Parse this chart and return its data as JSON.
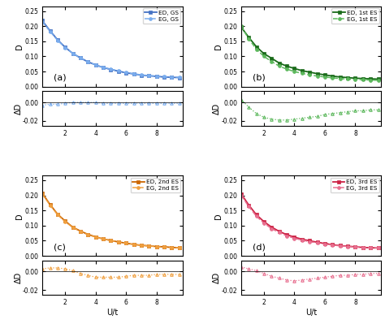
{
  "U_values": [
    0.5,
    1.0,
    1.5,
    2.0,
    2.5,
    3.0,
    3.5,
    4.0,
    4.5,
    5.0,
    5.5,
    6.0,
    6.5,
    7.0,
    7.5,
    8.0,
    8.5,
    9.0,
    9.5
  ],
  "panels": [
    {
      "label": "(a)",
      "color_ed": "#4472c4",
      "color_eg": "#7aadee",
      "ed_label": "ED, GS",
      "eg_label": "EG, GS",
      "ed_D": [
        0.218,
        0.185,
        0.155,
        0.13,
        0.11,
        0.095,
        0.082,
        0.072,
        0.063,
        0.057,
        0.051,
        0.046,
        0.042,
        0.038,
        0.036,
        0.034,
        0.032,
        0.031,
        0.03
      ],
      "eg_D": [
        0.215,
        0.183,
        0.153,
        0.129,
        0.11,
        0.095,
        0.082,
        0.072,
        0.064,
        0.058,
        0.052,
        0.047,
        0.043,
        0.039,
        0.037,
        0.035,
        0.033,
        0.032,
        0.031
      ],
      "delta_D": [
        -0.003,
        -0.002,
        -0.002,
        -0.001,
        0.0,
        0.0,
        0.0,
        0.0,
        -0.001,
        -0.001,
        -0.001,
        -0.001,
        -0.001,
        -0.001,
        -0.001,
        -0.001,
        -0.001,
        -0.001,
        -0.001
      ]
    },
    {
      "label": "(b)",
      "color_ed": "#1a6b1a",
      "color_eg": "#5cb85c",
      "ed_label": "ED, 1st ES",
      "eg_label": "EG, 1st ES",
      "ed_D": [
        0.197,
        0.163,
        0.132,
        0.109,
        0.094,
        0.078,
        0.068,
        0.06,
        0.053,
        0.048,
        0.043,
        0.039,
        0.035,
        0.032,
        0.03,
        0.028,
        0.027,
        0.026,
        0.025
      ],
      "eg_D": [
        0.2,
        0.158,
        0.124,
        0.1,
        0.083,
        0.068,
        0.058,
        0.05,
        0.044,
        0.039,
        0.035,
        0.032,
        0.029,
        0.027,
        0.025,
        0.024,
        0.023,
        0.022,
        0.021
      ],
      "delta_D": [
        0.003,
        -0.005,
        -0.012,
        -0.016,
        -0.018,
        -0.019,
        -0.019,
        -0.018,
        -0.017,
        -0.016,
        -0.015,
        -0.013,
        -0.012,
        -0.011,
        -0.01,
        -0.009,
        -0.009,
        -0.008,
        -0.008
      ]
    },
    {
      "label": "(c)",
      "color_ed": "#cc6600",
      "color_eg": "#f0a040",
      "ed_label": "ED, 2nd ES",
      "eg_label": "EG, 2nd ES",
      "ed_D": [
        0.207,
        0.17,
        0.138,
        0.115,
        0.095,
        0.082,
        0.071,
        0.063,
        0.056,
        0.051,
        0.046,
        0.042,
        0.038,
        0.035,
        0.033,
        0.031,
        0.03,
        0.028,
        0.027
      ],
      "eg_D": [
        0.204,
        0.168,
        0.136,
        0.113,
        0.094,
        0.081,
        0.07,
        0.062,
        0.056,
        0.051,
        0.046,
        0.042,
        0.038,
        0.035,
        0.033,
        0.031,
        0.029,
        0.028,
        0.027
      ],
      "delta_D": [
        0.003,
        0.004,
        0.004,
        0.003,
        0.001,
        -0.002,
        -0.004,
        -0.006,
        -0.006,
        -0.006,
        -0.006,
        -0.005,
        -0.004,
        -0.004,
        -0.004,
        -0.003,
        -0.003,
        -0.003,
        -0.003
      ]
    },
    {
      "label": "(d)",
      "color_ed": "#cc2244",
      "color_eg": "#e87090",
      "ed_label": "ED, 3rd ES",
      "eg_label": "EG, 3rd ES",
      "ed_D": [
        0.205,
        0.168,
        0.136,
        0.113,
        0.095,
        0.081,
        0.07,
        0.062,
        0.055,
        0.05,
        0.045,
        0.041,
        0.037,
        0.034,
        0.032,
        0.03,
        0.028,
        0.027,
        0.026
      ],
      "eg_D": [
        0.2,
        0.163,
        0.131,
        0.108,
        0.09,
        0.077,
        0.066,
        0.058,
        0.052,
        0.047,
        0.043,
        0.039,
        0.036,
        0.033,
        0.031,
        0.029,
        0.028,
        0.027,
        0.026
      ],
      "delta_D": [
        0.005,
        0.003,
        0.001,
        -0.002,
        -0.005,
        -0.007,
        -0.009,
        -0.01,
        -0.009,
        -0.008,
        -0.007,
        -0.006,
        -0.005,
        -0.004,
        -0.004,
        -0.003,
        -0.003,
        -0.002,
        -0.002
      ]
    }
  ],
  "xlabel": "U/t",
  "ylabel_D": "D",
  "ylabel_deltaD": "ΔD",
  "xlim": [
    0.5,
    9.7
  ],
  "ylim_D": [
    0.0,
    0.265
  ],
  "ylim_delta": [
    -0.025,
    0.012
  ],
  "xticks": [
    2,
    4,
    6,
    8
  ],
  "yticks_D": [
    0.0,
    0.05,
    0.1,
    0.15,
    0.2,
    0.25
  ],
  "yticks_delta": [
    -0.02,
    0.0
  ]
}
